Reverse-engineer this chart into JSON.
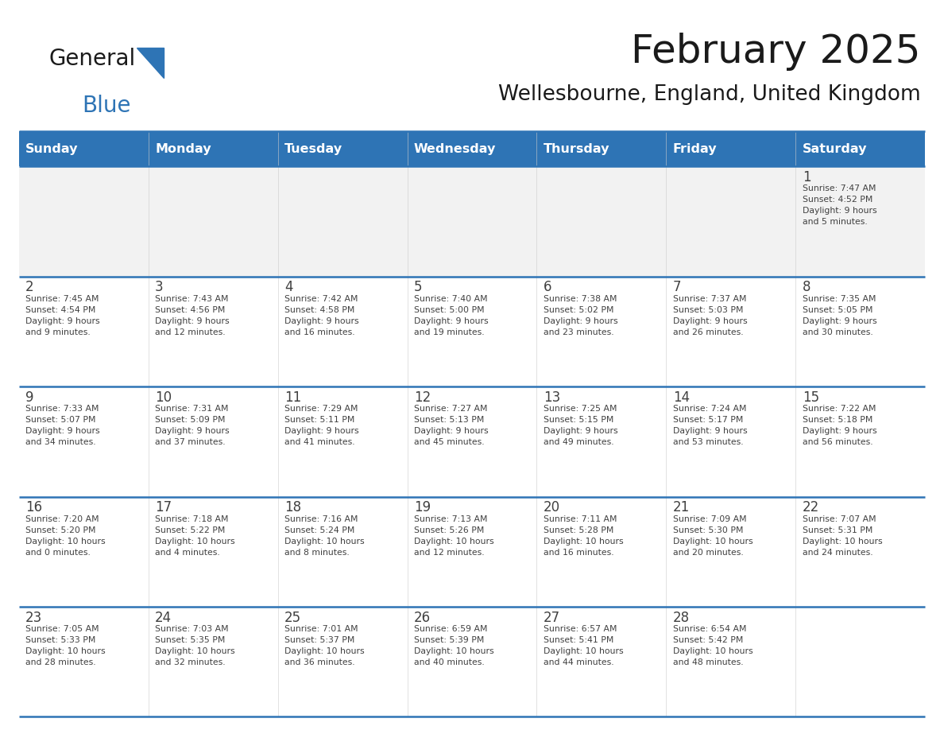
{
  "title": "February 2025",
  "subtitle": "Wellesbourne, England, United Kingdom",
  "header_bg": "#2E74B5",
  "header_text_color": "#FFFFFF",
  "cell_bg_gray": "#F2F2F2",
  "cell_bg_white": "#FFFFFF",
  "separator_color": "#2E74B5",
  "day_number_color": "#404040",
  "cell_text_color": "#404040",
  "days_of_week": [
    "Sunday",
    "Monday",
    "Tuesday",
    "Wednesday",
    "Thursday",
    "Friday",
    "Saturday"
  ],
  "weeks": [
    [
      {
        "day": null,
        "info": null
      },
      {
        "day": null,
        "info": null
      },
      {
        "day": null,
        "info": null
      },
      {
        "day": null,
        "info": null
      },
      {
        "day": null,
        "info": null
      },
      {
        "day": null,
        "info": null
      },
      {
        "day": 1,
        "info": "Sunrise: 7:47 AM\nSunset: 4:52 PM\nDaylight: 9 hours\nand 5 minutes."
      }
    ],
    [
      {
        "day": 2,
        "info": "Sunrise: 7:45 AM\nSunset: 4:54 PM\nDaylight: 9 hours\nand 9 minutes."
      },
      {
        "day": 3,
        "info": "Sunrise: 7:43 AM\nSunset: 4:56 PM\nDaylight: 9 hours\nand 12 minutes."
      },
      {
        "day": 4,
        "info": "Sunrise: 7:42 AM\nSunset: 4:58 PM\nDaylight: 9 hours\nand 16 minutes."
      },
      {
        "day": 5,
        "info": "Sunrise: 7:40 AM\nSunset: 5:00 PM\nDaylight: 9 hours\nand 19 minutes."
      },
      {
        "day": 6,
        "info": "Sunrise: 7:38 AM\nSunset: 5:02 PM\nDaylight: 9 hours\nand 23 minutes."
      },
      {
        "day": 7,
        "info": "Sunrise: 7:37 AM\nSunset: 5:03 PM\nDaylight: 9 hours\nand 26 minutes."
      },
      {
        "day": 8,
        "info": "Sunrise: 7:35 AM\nSunset: 5:05 PM\nDaylight: 9 hours\nand 30 minutes."
      }
    ],
    [
      {
        "day": 9,
        "info": "Sunrise: 7:33 AM\nSunset: 5:07 PM\nDaylight: 9 hours\nand 34 minutes."
      },
      {
        "day": 10,
        "info": "Sunrise: 7:31 AM\nSunset: 5:09 PM\nDaylight: 9 hours\nand 37 minutes."
      },
      {
        "day": 11,
        "info": "Sunrise: 7:29 AM\nSunset: 5:11 PM\nDaylight: 9 hours\nand 41 minutes."
      },
      {
        "day": 12,
        "info": "Sunrise: 7:27 AM\nSunset: 5:13 PM\nDaylight: 9 hours\nand 45 minutes."
      },
      {
        "day": 13,
        "info": "Sunrise: 7:25 AM\nSunset: 5:15 PM\nDaylight: 9 hours\nand 49 minutes."
      },
      {
        "day": 14,
        "info": "Sunrise: 7:24 AM\nSunset: 5:17 PM\nDaylight: 9 hours\nand 53 minutes."
      },
      {
        "day": 15,
        "info": "Sunrise: 7:22 AM\nSunset: 5:18 PM\nDaylight: 9 hours\nand 56 minutes."
      }
    ],
    [
      {
        "day": 16,
        "info": "Sunrise: 7:20 AM\nSunset: 5:20 PM\nDaylight: 10 hours\nand 0 minutes."
      },
      {
        "day": 17,
        "info": "Sunrise: 7:18 AM\nSunset: 5:22 PM\nDaylight: 10 hours\nand 4 minutes."
      },
      {
        "day": 18,
        "info": "Sunrise: 7:16 AM\nSunset: 5:24 PM\nDaylight: 10 hours\nand 8 minutes."
      },
      {
        "day": 19,
        "info": "Sunrise: 7:13 AM\nSunset: 5:26 PM\nDaylight: 10 hours\nand 12 minutes."
      },
      {
        "day": 20,
        "info": "Sunrise: 7:11 AM\nSunset: 5:28 PM\nDaylight: 10 hours\nand 16 minutes."
      },
      {
        "day": 21,
        "info": "Sunrise: 7:09 AM\nSunset: 5:30 PM\nDaylight: 10 hours\nand 20 minutes."
      },
      {
        "day": 22,
        "info": "Sunrise: 7:07 AM\nSunset: 5:31 PM\nDaylight: 10 hours\nand 24 minutes."
      }
    ],
    [
      {
        "day": 23,
        "info": "Sunrise: 7:05 AM\nSunset: 5:33 PM\nDaylight: 10 hours\nand 28 minutes."
      },
      {
        "day": 24,
        "info": "Sunrise: 7:03 AM\nSunset: 5:35 PM\nDaylight: 10 hours\nand 32 minutes."
      },
      {
        "day": 25,
        "info": "Sunrise: 7:01 AM\nSunset: 5:37 PM\nDaylight: 10 hours\nand 36 minutes."
      },
      {
        "day": 26,
        "info": "Sunrise: 6:59 AM\nSunset: 5:39 PM\nDaylight: 10 hours\nand 40 minutes."
      },
      {
        "day": 27,
        "info": "Sunrise: 6:57 AM\nSunset: 5:41 PM\nDaylight: 10 hours\nand 44 minutes."
      },
      {
        "day": 28,
        "info": "Sunrise: 6:54 AM\nSunset: 5:42 PM\nDaylight: 10 hours\nand 48 minutes."
      },
      {
        "day": null,
        "info": null
      }
    ]
  ],
  "fig_width": 11.88,
  "fig_height": 9.18
}
